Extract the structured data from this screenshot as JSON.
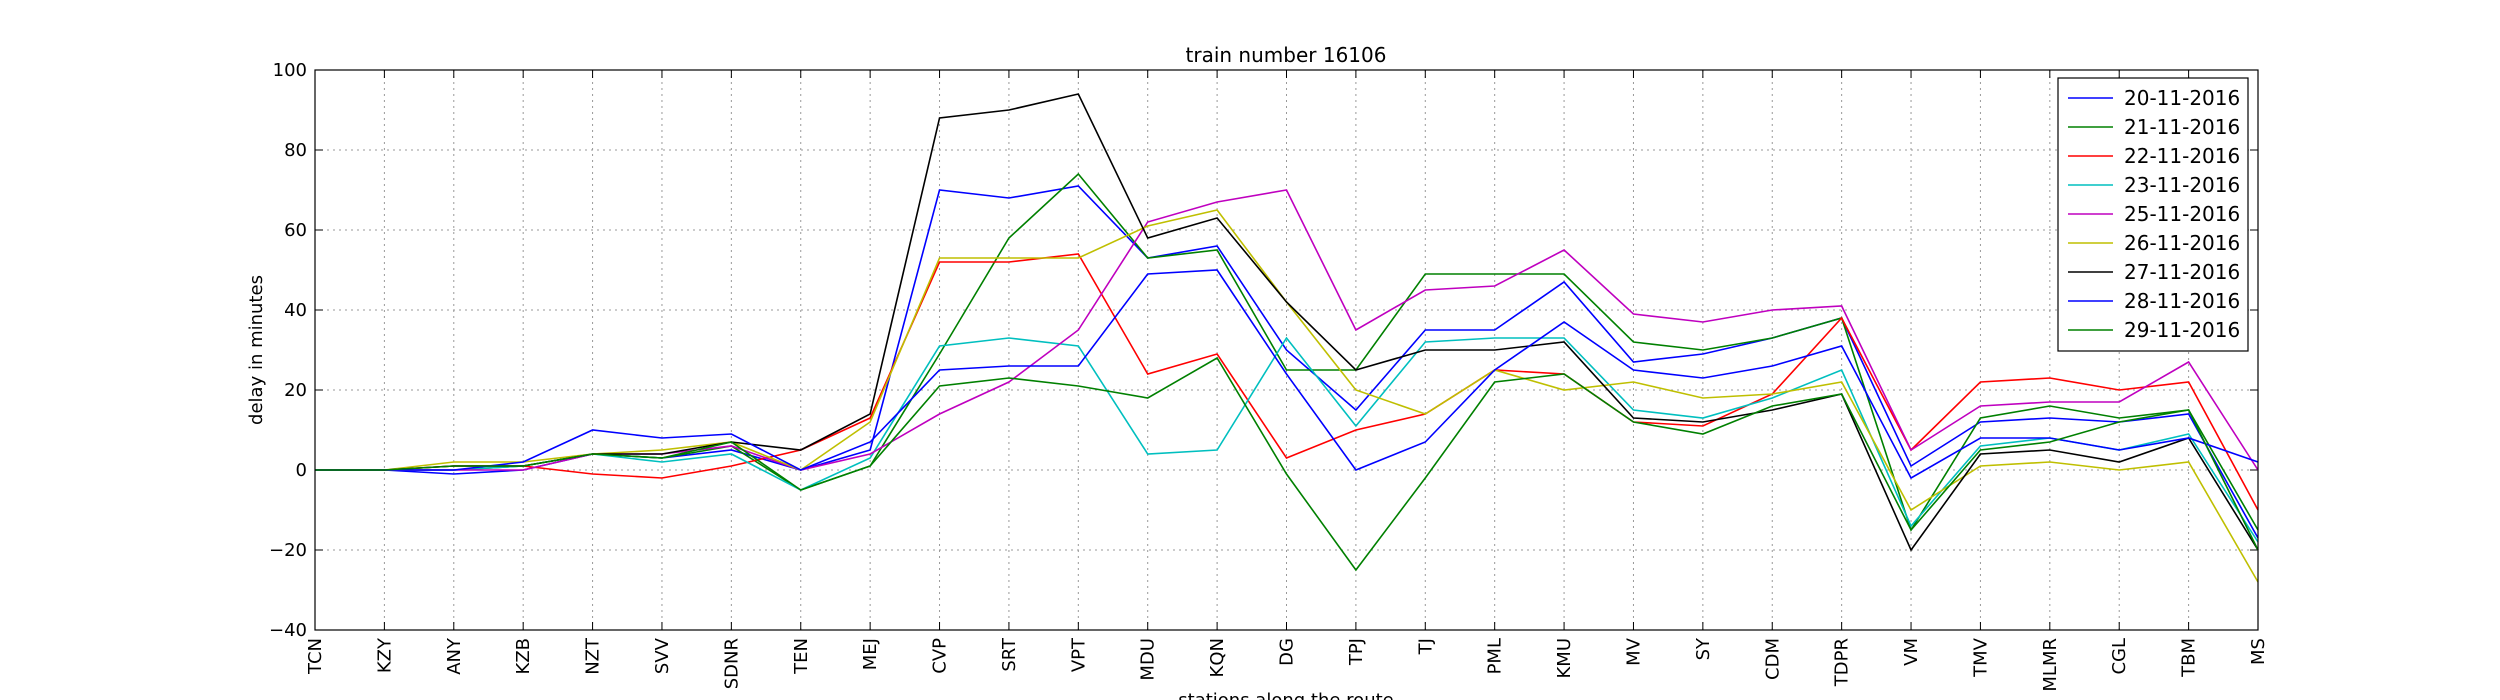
{
  "chart_data": {
    "type": "line",
    "title": "train number 16106",
    "x_label": "stations along the route",
    "y_label": "delay in minutes",
    "categories": [
      "TCN",
      "KZY",
      "ANY",
      "KZB",
      "NZT",
      "SVV",
      "SDNR",
      "TEN",
      "MEJ",
      "CVP",
      "SRT",
      "VPT",
      "MDU",
      "KQN",
      "DG",
      "TPJ",
      "TJ",
      "PML",
      "KMU",
      "MV",
      "SY",
      "CDM",
      "TDPR",
      "VM",
      "TMV",
      "MLMR",
      "CGL",
      "TBM",
      "MS"
    ],
    "series": [
      {
        "name": "20-11-2016",
        "color": "#0000ff",
        "values": [
          0,
          0,
          -1,
          0,
          4,
          3,
          5,
          0,
          5,
          70,
          68,
          71,
          53,
          56,
          30,
          15,
          35,
          35,
          47,
          27,
          29,
          33,
          38,
          1,
          12,
          13,
          12,
          14,
          -17
        ]
      },
      {
        "name": "21-11-2016",
        "color": "#008000",
        "values": [
          0,
          0,
          0,
          1,
          4,
          3,
          6,
          -5,
          1,
          29,
          58,
          74,
          53,
          55,
          25,
          25,
          49,
          49,
          49,
          32,
          30,
          33,
          38,
          -15,
          13,
          16,
          13,
          15,
          -15
        ]
      },
      {
        "name": "22-11-2016",
        "color": "#ff0000",
        "values": [
          0,
          0,
          1,
          1,
          -1,
          -2,
          1,
          5,
          13,
          52,
          52,
          54,
          24,
          29,
          3,
          10,
          14,
          25,
          24,
          12,
          11,
          19,
          38,
          5,
          22,
          23,
          20,
          22,
          -10
        ]
      },
      {
        "name": "23-11-2016",
        "color": "#00bfbf",
        "values": [
          0,
          0,
          0,
          1,
          4,
          2,
          4,
          -5,
          3,
          31,
          33,
          31,
          4,
          5,
          33,
          11,
          32,
          33,
          33,
          15,
          13,
          18,
          25,
          -14,
          6,
          8,
          5,
          9,
          -18
        ]
      },
      {
        "name": "25-11-2016",
        "color": "#bf00bf",
        "values": [
          0,
          0,
          0,
          0,
          4,
          4,
          6,
          0,
          4,
          14,
          22,
          35,
          62,
          67,
          70,
          35,
          45,
          46,
          55,
          39,
          37,
          40,
          41,
          5,
          16,
          17,
          17,
          27,
          0
        ]
      },
      {
        "name": "26-11-2016",
        "color": "#bfbf00",
        "values": [
          0,
          0,
          2,
          2,
          4,
          5,
          7,
          0,
          12,
          53,
          53,
          53,
          61,
          65,
          42,
          20,
          14,
          25,
          20,
          22,
          18,
          19,
          22,
          -10,
          1,
          2,
          0,
          2,
          -28
        ]
      },
      {
        "name": "27-11-2016",
        "color": "#000000",
        "values": [
          0,
          0,
          1,
          1,
          4,
          4,
          7,
          5,
          14,
          88,
          90,
          94,
          58,
          63,
          42,
          25,
          30,
          30,
          32,
          13,
          12,
          15,
          19,
          -20,
          4,
          5,
          2,
          8,
          -20
        ]
      },
      {
        "name": "28-11-2016",
        "color": "#0000ff",
        "values": [
          0,
          0,
          0,
          2,
          10,
          8,
          9,
          0,
          7,
          25,
          26,
          26,
          49,
          50,
          24,
          0,
          7,
          25,
          37,
          25,
          23,
          26,
          31,
          -2,
          8,
          8,
          5,
          8,
          2
        ]
      },
      {
        "name": "29-11-2016",
        "color": "#008000",
        "values": [
          0,
          0,
          1,
          1,
          4,
          3,
          7,
          -5,
          1,
          21,
          23,
          21,
          18,
          28,
          -1,
          -25,
          -2,
          22,
          24,
          12,
          9,
          16,
          19,
          -15,
          5,
          7,
          12,
          15,
          -20
        ]
      }
    ],
    "ylim": [
      -40,
      100
    ],
    "yticks": [
      {
        "value": -40,
        "label": "−40"
      },
      {
        "value": -20,
        "label": "−20"
      },
      0,
      20,
      40,
      60,
      80,
      100
    ],
    "grid": true,
    "legend": "upper right"
  }
}
